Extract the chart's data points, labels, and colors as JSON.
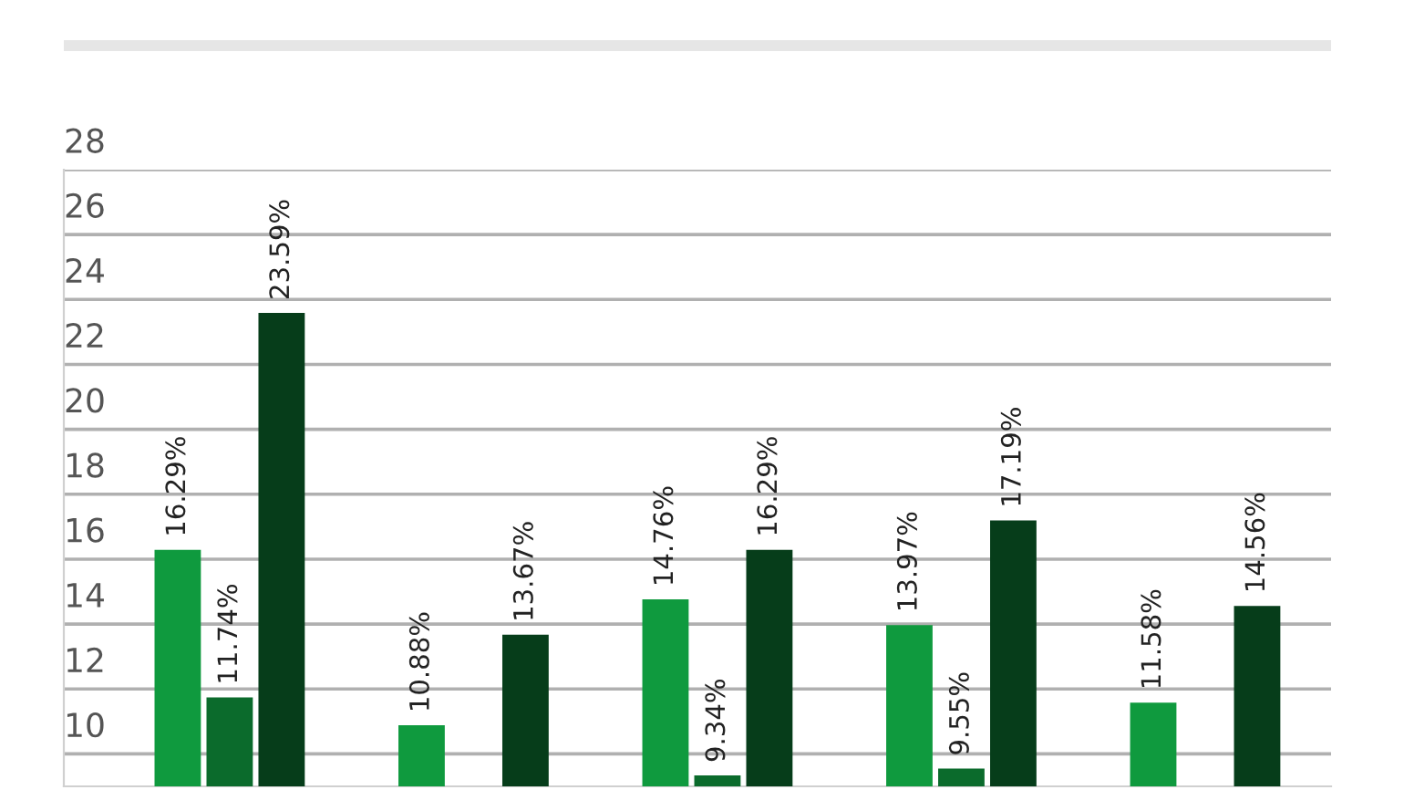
{
  "chart_data": {
    "type": "bar",
    "categories": [
      null,
      null,
      null,
      null,
      null
    ],
    "series": [
      {
        "color": "#0f9a3e",
        "values": [
          16.29,
          10.88,
          14.76,
          13.97,
          11.58
        ],
        "value_labels": [
          "16.29%",
          "10.88%",
          "14.76%",
          "13.97%",
          "11.58%"
        ]
      },
      {
        "color": "#0b6b2c",
        "values": [
          11.74,
          null,
          9.34,
          9.55,
          null
        ],
        "value_labels": [
          "11.74%",
          null,
          "9.34%",
          "9.55%",
          null
        ]
      },
      {
        "color": "#063d1a",
        "values": [
          23.59,
          13.67,
          16.29,
          17.19,
          14.56
        ],
        "value_labels": [
          "23.59%",
          "13.67%",
          "16.29%",
          "17.19%",
          "14.56%"
        ]
      }
    ],
    "ylim": [
      9,
      28
    ],
    "yticks": [
      10,
      12,
      14,
      16,
      18,
      20,
      22,
      24,
      26,
      28
    ],
    "grid": "y",
    "tick_labels": "y"
  }
}
